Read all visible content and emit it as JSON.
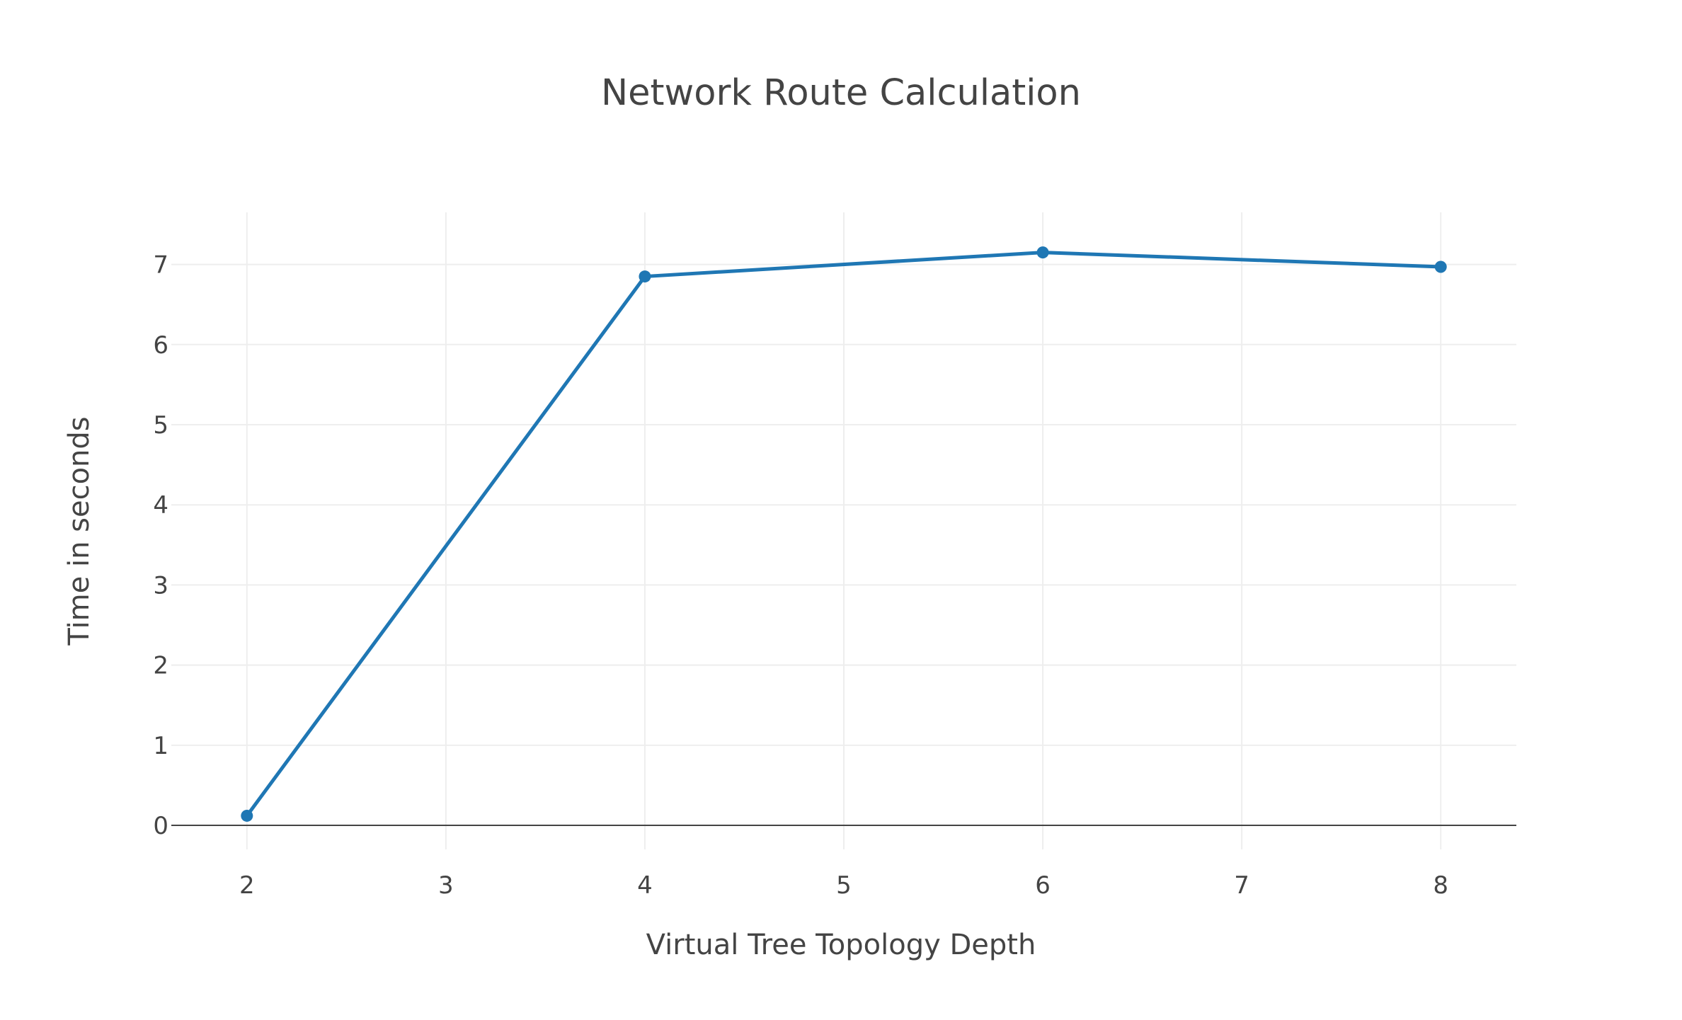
{
  "chart_data": {
    "type": "line",
    "title": "Network Route Calculation",
    "xlabel": "Virtual Tree Topology Depth",
    "ylabel": "Time in seconds",
    "x_ticks": [
      2,
      3,
      4,
      5,
      6,
      7,
      8
    ],
    "y_ticks": [
      0,
      1,
      2,
      3,
      4,
      5,
      6,
      7
    ],
    "xlim": [
      1.62,
      8.38
    ],
    "ylim": [
      -0.3,
      7.65
    ],
    "grid": true,
    "legend": false,
    "series": [
      {
        "x": [
          2,
          4,
          6,
          8
        ],
        "y": [
          0.12,
          6.85,
          7.15,
          6.97
        ],
        "color": "#1f77b4"
      }
    ]
  }
}
